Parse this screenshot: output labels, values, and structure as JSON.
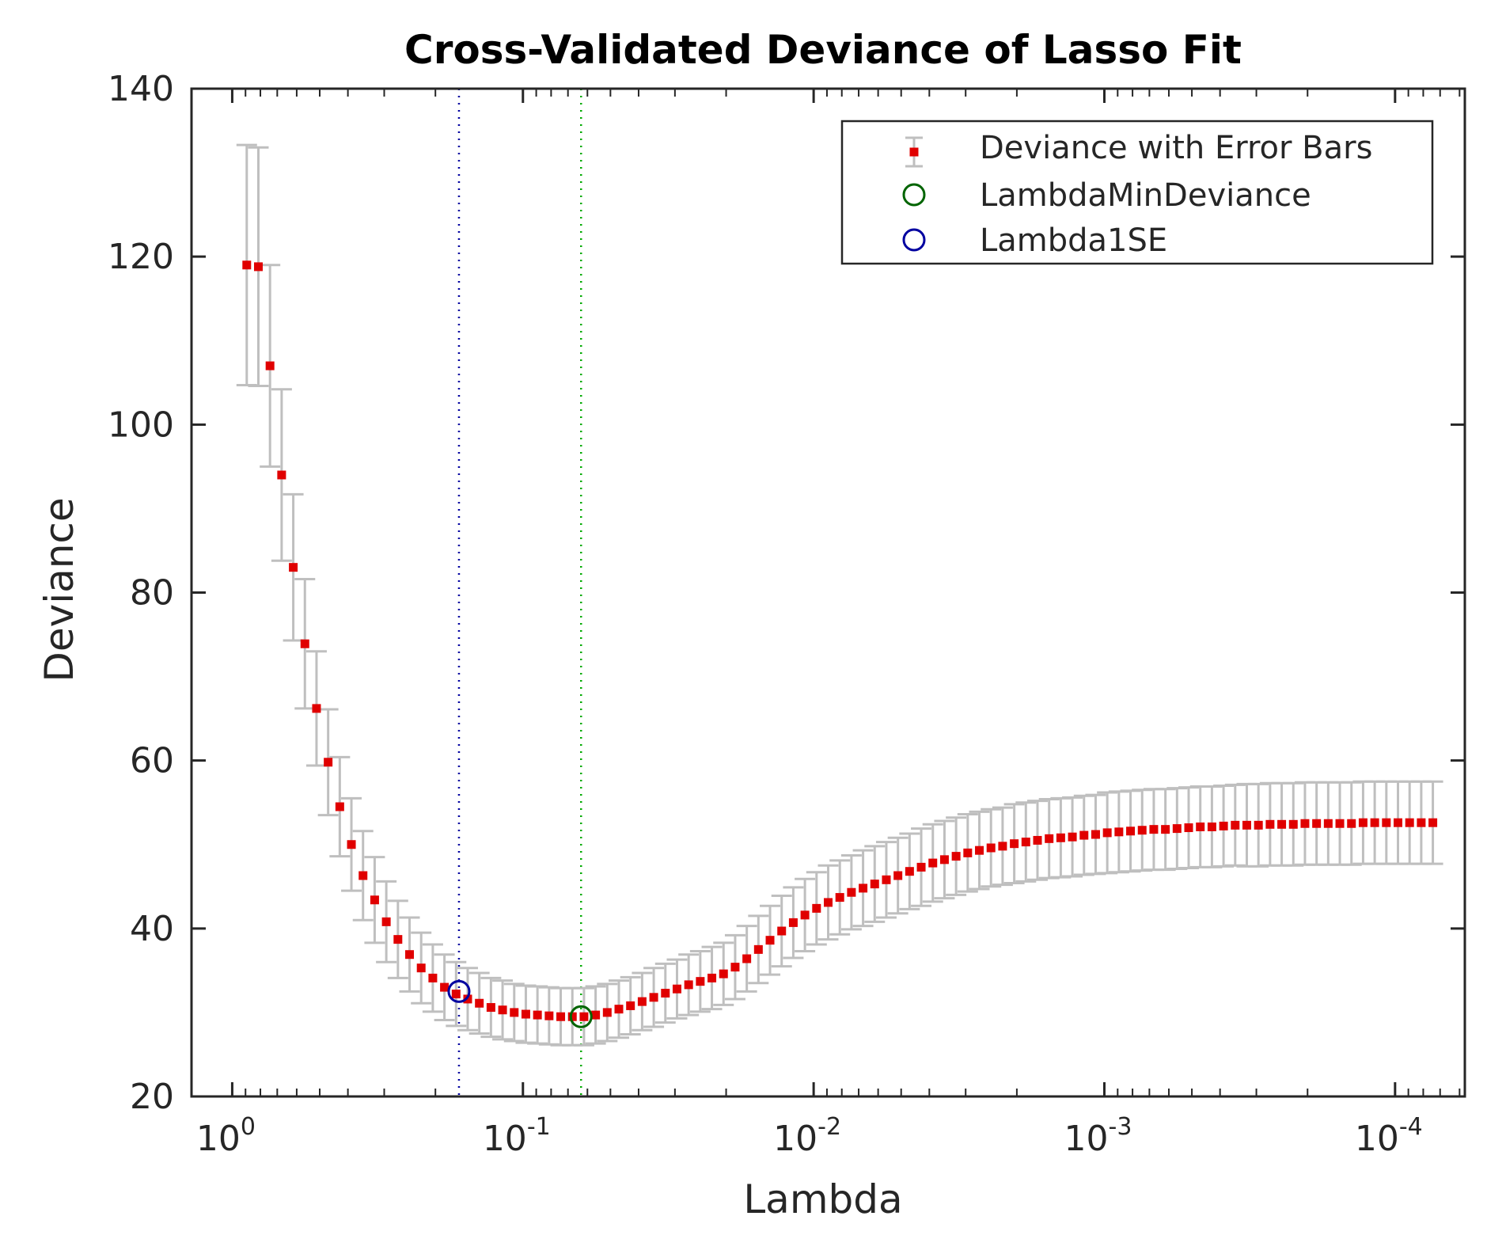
{
  "chart_data": {
    "type": "scatter",
    "title": "Cross-Validated Deviance of Lasso Fit",
    "xlabel": "Lambda",
    "ylabel": "Deviance",
    "xscale": "log",
    "xdir": "reverse",
    "xlim_log10": [
      0.14,
      -4.24
    ],
    "ylim": [
      20,
      140
    ],
    "yticks": [
      20,
      40,
      60,
      80,
      100,
      120,
      140
    ],
    "xticks": [
      {
        "log10": 0,
        "base": "10",
        "exp": "0"
      },
      {
        "log10": -1,
        "base": "10",
        "exp": "-1"
      },
      {
        "log10": -2,
        "base": "10",
        "exp": "-2"
      },
      {
        "log10": -3,
        "base": "10",
        "exp": "-3"
      },
      {
        "log10": -4,
        "base": "10",
        "exp": "-4"
      }
    ],
    "legend": {
      "position": "top-right",
      "entries": [
        "Deviance with Error Bars",
        "LambdaMinDeviance",
        "Lambda1SE"
      ]
    },
    "lambda_min_deviance": {
      "log10_lambda": -1.2,
      "deviance": 29.5
    },
    "lambda_1se": {
      "log10_lambda": -0.78,
      "deviance": 32.5
    },
    "series": [
      {
        "name": "Deviance with Error Bars",
        "color": "#e00000",
        "errorbar_color": "#bfbfbf",
        "log10_lambda": [
          -0.05,
          -0.09,
          -0.13,
          -0.17,
          -0.21,
          -0.25,
          -0.29,
          -0.33,
          -0.37,
          -0.41,
          -0.45,
          -0.49,
          -0.53,
          -0.57,
          -0.61,
          -0.65,
          -0.69,
          -0.73,
          -0.77,
          -0.81,
          -0.85,
          -0.89,
          -0.93,
          -0.97,
          -1.01,
          -1.05,
          -1.09,
          -1.13,
          -1.17,
          -1.21,
          -1.25,
          -1.29,
          -1.33,
          -1.37,
          -1.41,
          -1.45,
          -1.49,
          -1.53,
          -1.57,
          -1.61,
          -1.65,
          -1.69,
          -1.73,
          -1.77,
          -1.81,
          -1.85,
          -1.89,
          -1.93,
          -1.97,
          -2.01,
          -2.05,
          -2.09,
          -2.13,
          -2.17,
          -2.21,
          -2.25,
          -2.29,
          -2.33,
          -2.37,
          -2.41,
          -2.45,
          -2.49,
          -2.53,
          -2.57,
          -2.61,
          -2.65,
          -2.69,
          -2.73,
          -2.77,
          -2.81,
          -2.85,
          -2.89,
          -2.93,
          -2.97,
          -3.01,
          -3.05,
          -3.09,
          -3.13,
          -3.17,
          -3.21,
          -3.25,
          -3.29,
          -3.33,
          -3.37,
          -3.41,
          -3.45,
          -3.49,
          -3.53,
          -3.57,
          -3.61,
          -3.65,
          -3.69,
          -3.73,
          -3.77,
          -3.81,
          -3.85,
          -3.89,
          -3.93,
          -3.97,
          -4.01,
          -4.05,
          -4.09,
          -4.13
        ],
        "deviance": [
          119.0,
          118.8,
          107.0,
          94.0,
          83.0,
          73.9,
          66.2,
          59.8,
          54.5,
          50.0,
          46.3,
          43.4,
          40.8,
          38.7,
          36.9,
          35.3,
          34.1,
          33.0,
          32.2,
          31.6,
          31.1,
          30.6,
          30.3,
          30.0,
          29.8,
          29.7,
          29.6,
          29.5,
          29.5,
          29.5,
          29.7,
          30.0,
          30.4,
          30.8,
          31.3,
          31.8,
          32.3,
          32.8,
          33.3,
          33.7,
          34.1,
          34.6,
          35.4,
          36.4,
          37.5,
          38.6,
          39.7,
          40.7,
          41.6,
          42.4,
          43.1,
          43.7,
          44.3,
          44.8,
          45.3,
          45.8,
          46.3,
          46.8,
          47.3,
          47.8,
          48.2,
          48.6,
          49.0,
          49.3,
          49.6,
          49.8,
          50.1,
          50.3,
          50.5,
          50.7,
          50.8,
          50.9,
          51.1,
          51.2,
          51.4,
          51.5,
          51.6,
          51.7,
          51.8,
          51.8,
          51.9,
          52.0,
          52.1,
          52.1,
          52.2,
          52.3,
          52.3,
          52.3,
          52.4,
          52.4,
          52.4,
          52.5,
          52.5,
          52.5,
          52.5,
          52.5,
          52.6,
          52.6,
          52.6,
          52.6,
          52.6,
          52.6,
          52.6
        ],
        "std_error": [
          14.3,
          14.2,
          12.0,
          10.2,
          8.7,
          7.7,
          6.8,
          6.3,
          5.9,
          5.5,
          5.3,
          5.1,
          4.8,
          4.6,
          4.4,
          4.2,
          4.0,
          3.9,
          3.8,
          3.7,
          3.6,
          3.5,
          3.5,
          3.4,
          3.4,
          3.4,
          3.4,
          3.4,
          3.4,
          3.4,
          3.4,
          3.4,
          3.4,
          3.4,
          3.4,
          3.5,
          3.5,
          3.5,
          3.6,
          3.6,
          3.7,
          3.7,
          3.8,
          3.9,
          4.0,
          4.1,
          4.2,
          4.2,
          4.3,
          4.3,
          4.4,
          4.4,
          4.4,
          4.5,
          4.5,
          4.5,
          4.5,
          4.5,
          4.6,
          4.6,
          4.6,
          4.6,
          4.6,
          4.6,
          4.6,
          4.6,
          4.7,
          4.7,
          4.7,
          4.7,
          4.7,
          4.7,
          4.7,
          4.7,
          4.8,
          4.8,
          4.8,
          4.8,
          4.8,
          4.8,
          4.8,
          4.8,
          4.8,
          4.8,
          4.8,
          4.8,
          4.9,
          4.9,
          4.9,
          4.9,
          4.9,
          4.9,
          4.9,
          4.9,
          4.9,
          4.9,
          4.9,
          4.9,
          4.9,
          4.9,
          4.9,
          4.9,
          4.9
        ]
      }
    ],
    "colors": {
      "marker": "#e00000",
      "errorbar": "#bfbfbf",
      "min_line": "#00aa00",
      "min_marker": "#006400",
      "se_line": "#0000a0",
      "se_marker": "#0000a0",
      "axes": "#262626"
    }
  }
}
